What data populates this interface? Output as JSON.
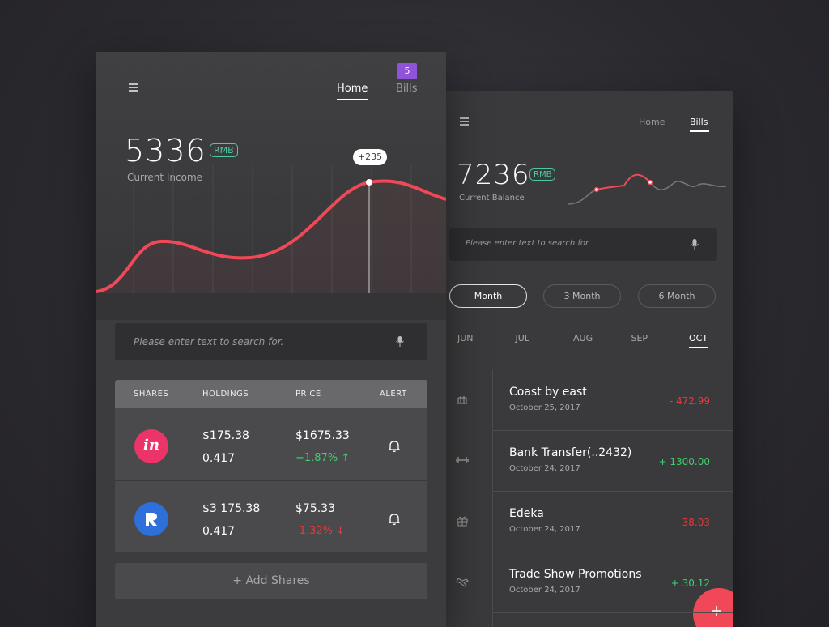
{
  "left_screen": {
    "tabs": [
      "Home",
      "Bills"
    ],
    "badge": "5",
    "income": {
      "value": "5336",
      "currency": "RMB",
      "label": "Current Income"
    },
    "chart_tooltip": "+235",
    "search_placeholder": "Please enter text to search for.",
    "table": {
      "headers": [
        "SHARES",
        "HOLDINGS",
        "PRICE",
        "ALERT"
      ],
      "rows": [
        {
          "logo": "in",
          "holdings": "$175.38",
          "amount": "0.417",
          "price": "$1675.33",
          "change": "+1.87% ↑",
          "color": "#3fd070"
        },
        {
          "holdings": "$3 175.38",
          "amount": "0.417",
          "price": "$75.33",
          "change": "-1.32% ↓",
          "color": "#e8383c"
        }
      ]
    },
    "add_button": "+ Add Shares"
  },
  "right_screen": {
    "tabs": [
      "Home",
      "Bills"
    ],
    "balance": {
      "value": "7236",
      "currency": "RMB",
      "label": "Current Balance"
    },
    "search_placeholder": "Please enter text to search for.",
    "periods": [
      "Month",
      "3 Month",
      "6 Month"
    ],
    "months": [
      "JUN",
      "JUL",
      "AUG",
      "SEP",
      "OCT"
    ],
    "transactions": [
      {
        "title": "Coast by east",
        "date": "October 25, 2017",
        "amount": "- 472.99",
        "color": "#e8383c"
      },
      {
        "title": "Bank Transfer(..2432)",
        "date": "October 24, 2017",
        "amount": "+ 1300.00",
        "color": "#3fd070"
      },
      {
        "title": "Edeka",
        "date": "October 24, 2017",
        "amount": "- 38.03",
        "color": "#e8383c"
      },
      {
        "title": "Trade Show Promotions",
        "date": "October 24, 2017",
        "amount": "+ 30.12",
        "color": "#3fd070"
      }
    ]
  }
}
